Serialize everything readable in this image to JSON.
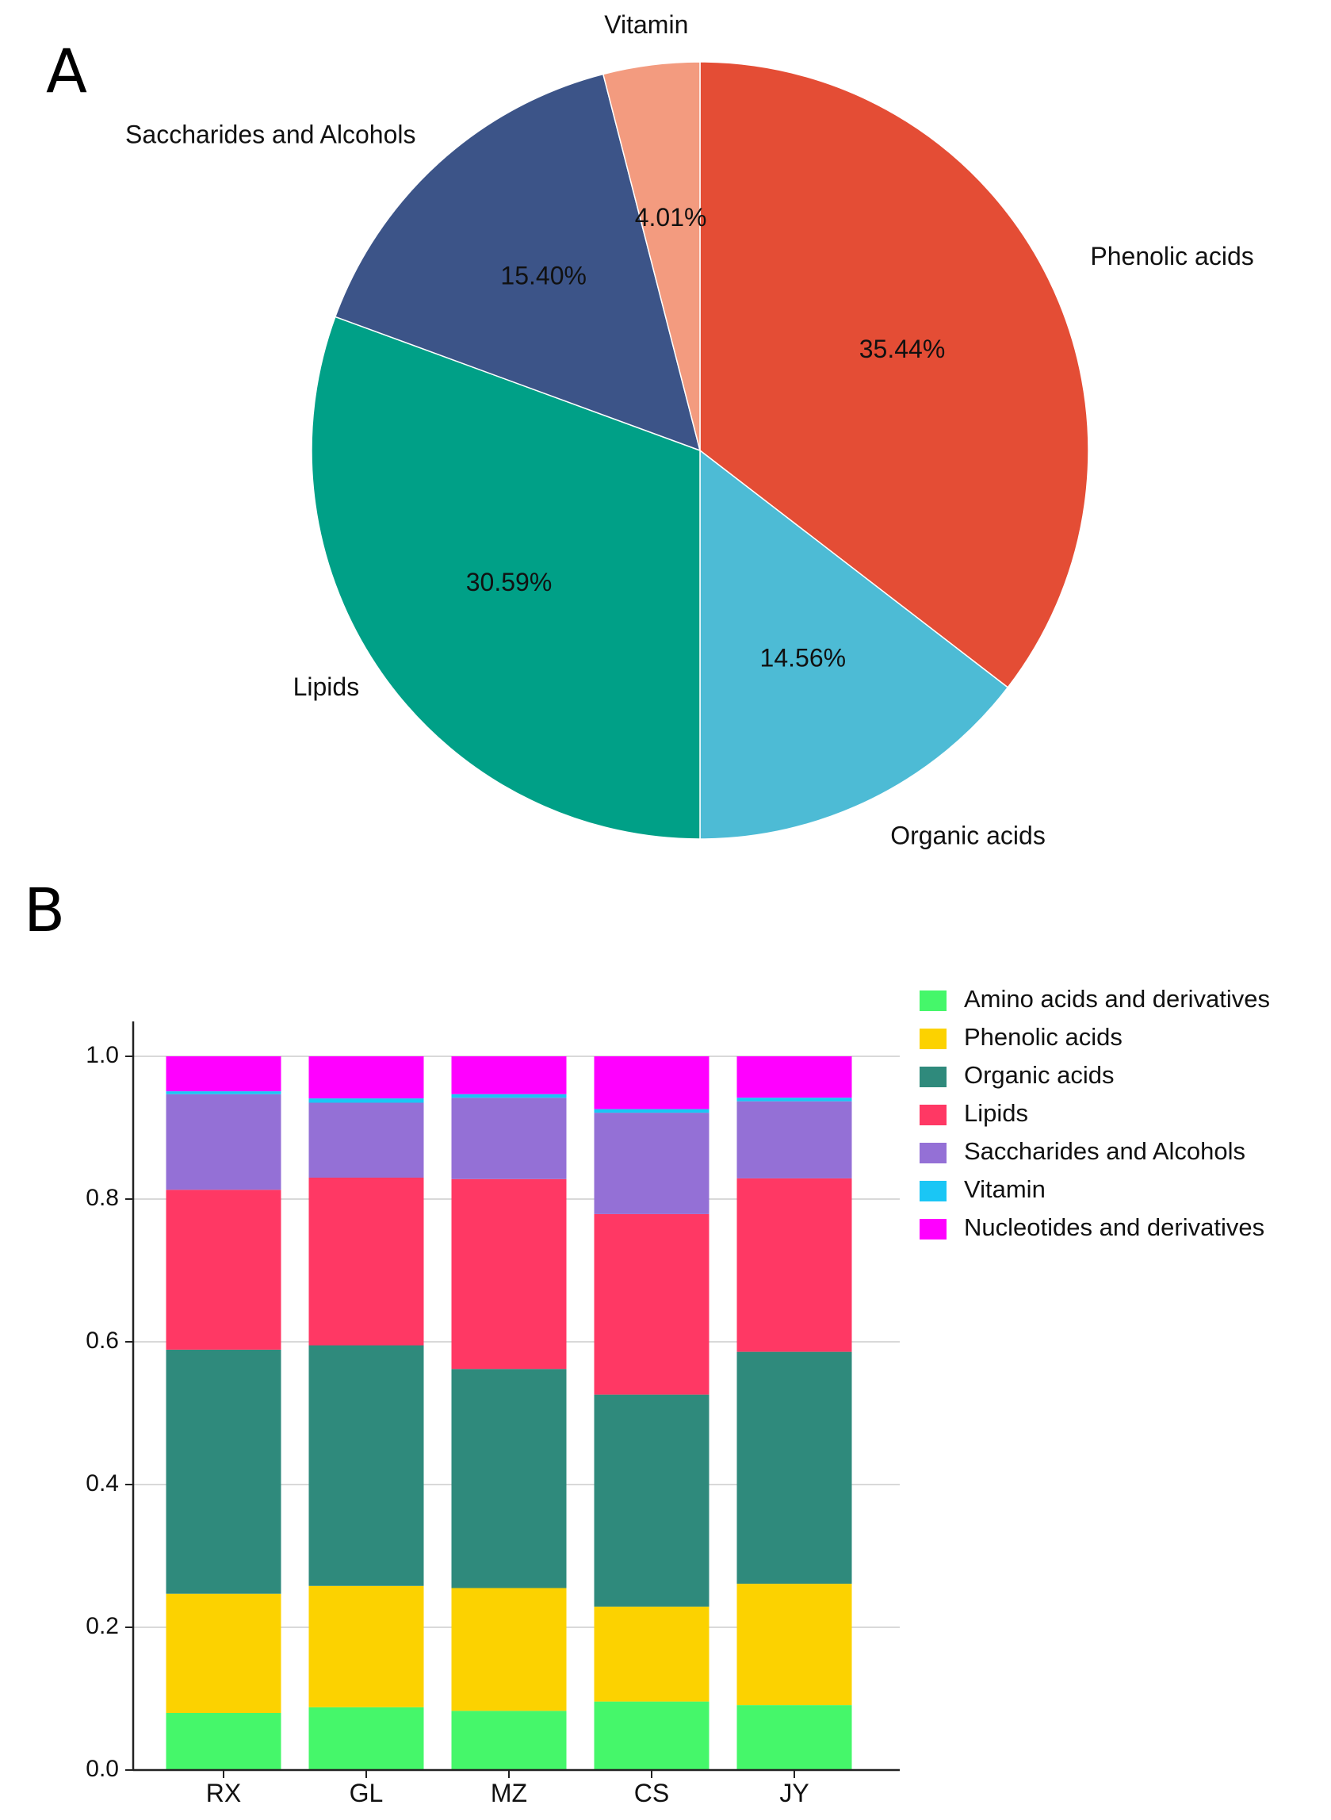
{
  "panel_labels": {
    "a": "A",
    "b": "B"
  },
  "chart_data": [
    {
      "type": "pie",
      "panel": "A",
      "start": "top, clockwise",
      "slices": [
        {
          "label": "Phenolic acids",
          "value": 35.44,
          "pct_label": "35.44%",
          "color": "#e44d35"
        },
        {
          "label": "Organic acids",
          "value": 14.56,
          "pct_label": "14.56%",
          "color": "#4dbbd5"
        },
        {
          "label": "Lipids",
          "value": 30.59,
          "pct_label": "30.59%",
          "color": "#00a087"
        },
        {
          "label": "Saccharides and Alcohols",
          "value": 15.4,
          "pct_label": "15.40%",
          "color": "#3c5488"
        },
        {
          "label": "Vitamin",
          "value": 4.01,
          "pct_label": "4.01%",
          "color": "#f39b7f"
        }
      ]
    },
    {
      "type": "bar",
      "stacked": true,
      "panel": "B",
      "categories": [
        "RX",
        "GL",
        "MZ",
        "CS",
        "JY"
      ],
      "ylim": [
        0,
        1.0
      ],
      "yticks": [
        "0.0",
        "0.2",
        "0.4",
        "0.6",
        "0.8",
        "1.0"
      ],
      "grid": true,
      "legend": "right",
      "series": [
        {
          "name": "Amino acids and derivatives",
          "color": "#45f76a",
          "values": [
            0.08,
            0.088,
            0.083,
            0.096,
            0.091
          ]
        },
        {
          "name": "Phenolic acids",
          "color": "#fcd200",
          "values": [
            0.167,
            0.17,
            0.172,
            0.133,
            0.17
          ]
        },
        {
          "name": "Organic acids",
          "color": "#2f8a7c",
          "values": [
            0.342,
            0.337,
            0.307,
            0.297,
            0.325
          ]
        },
        {
          "name": "Lipids",
          "color": "#ff3864",
          "values": [
            0.224,
            0.235,
            0.266,
            0.253,
            0.243
          ]
        },
        {
          "name": "Saccharides and Alcohols",
          "color": "#9470d6",
          "values": [
            0.134,
            0.105,
            0.114,
            0.142,
            0.108
          ]
        },
        {
          "name": "Vitamin",
          "color": "#1ac6f5",
          "values": [
            0.004,
            0.006,
            0.005,
            0.005,
            0.005
          ]
        },
        {
          "name": "Nucleotides and derivatives",
          "color": "#ff00ff",
          "values": [
            0.049,
            0.059,
            0.053,
            0.074,
            0.058
          ]
        }
      ]
    }
  ]
}
